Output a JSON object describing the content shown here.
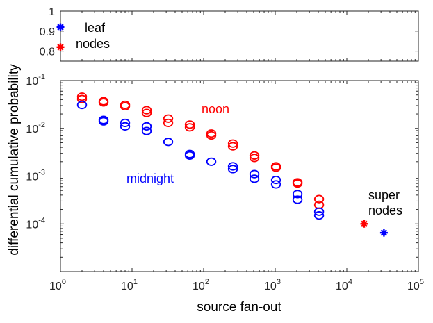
{
  "chart_data": [
    {
      "type": "scatter",
      "panel": "top",
      "xscale": "log",
      "xlim": [
        1,
        100000
      ],
      "ylim": [
        0.75,
        1.0
      ],
      "yticks": [
        0.8,
        0.9,
        1
      ],
      "ytick_labels": [
        "0.8",
        "0.9",
        "1"
      ],
      "grid": false,
      "series": [
        {
          "color": "#0000ff",
          "marker": "star",
          "points": [
            [
              1,
              0.92
            ]
          ]
        },
        {
          "color": "#ff0000",
          "marker": "star",
          "points": [
            [
              1,
              0.82
            ]
          ]
        }
      ],
      "annotations": [
        {
          "text": "leaf",
          "color": "#000000"
        },
        {
          "text": "nodes",
          "color": "#000000"
        }
      ]
    },
    {
      "type": "scatter",
      "panel": "bottom",
      "xscale": "log",
      "yscale": "log",
      "xlim": [
        1,
        100000
      ],
      "ylim": [
        1e-05,
        0.1
      ],
      "xlabel": "source fan-out",
      "ylabel": "differential cumulative probability",
      "xtick_values": [
        1,
        10,
        100,
        1000,
        10000,
        100000
      ],
      "xtick_labels": [
        {
          "base": "10",
          "exp": "0"
        },
        {
          "base": "10",
          "exp": "1"
        },
        {
          "base": "10",
          "exp": "2"
        },
        {
          "base": "10",
          "exp": "3"
        },
        {
          "base": "10",
          "exp": "4"
        },
        {
          "base": "10",
          "exp": "5"
        }
      ],
      "ytick_values": [
        0.0001,
        0.001,
        0.01,
        0.1
      ],
      "ytick_labels": [
        {
          "base": "10",
          "exp": "-4"
        },
        {
          "base": "10",
          "exp": "-3"
        },
        {
          "base": "10",
          "exp": "-2"
        },
        {
          "base": "10",
          "exp": "-1"
        }
      ],
      "grid": false,
      "series": [
        {
          "color": "#ff0000",
          "marker": "circle",
          "points": [
            [
              2,
              0.046
            ],
            [
              2,
              0.041
            ],
            [
              4,
              0.037
            ],
            [
              4,
              0.035
            ],
            [
              8,
              0.031
            ],
            [
              8,
              0.029
            ],
            [
              16,
              0.024
            ],
            [
              16,
              0.021
            ],
            [
              32,
              0.016
            ],
            [
              32,
              0.013
            ],
            [
              64,
              0.012
            ],
            [
              64,
              0.0105
            ],
            [
              128,
              0.0078
            ],
            [
              128,
              0.0071
            ],
            [
              256,
              0.0048
            ],
            [
              256,
              0.0042
            ],
            [
              512,
              0.0027
            ],
            [
              512,
              0.0024
            ],
            [
              1024,
              0.0016
            ],
            [
              1024,
              0.0015
            ],
            [
              2048,
              0.00074
            ],
            [
              2048,
              0.0007
            ],
            [
              4096,
              0.00033
            ],
            [
              4096,
              0.00025
            ]
          ]
        },
        {
          "color": "#0000ff",
          "marker": "circle",
          "points": [
            [
              2,
              0.031
            ],
            [
              4,
              0.015
            ],
            [
              4,
              0.014
            ],
            [
              8,
              0.013
            ],
            [
              8,
              0.011
            ],
            [
              16,
              0.011
            ],
            [
              16,
              0.0088
            ],
            [
              32,
              0.0052
            ],
            [
              64,
              0.0029
            ],
            [
              64,
              0.0027
            ],
            [
              128,
              0.002
            ],
            [
              256,
              0.0016
            ],
            [
              256,
              0.0014
            ],
            [
              512,
              0.0011
            ],
            [
              512,
              0.00088
            ],
            [
              1024,
              0.00083
            ],
            [
              1024,
              0.00067
            ],
            [
              2048,
              0.00042
            ],
            [
              2048,
              0.00032
            ],
            [
              4096,
              0.00018
            ],
            [
              4096,
              0.00015
            ]
          ]
        },
        {
          "color": "#ff0000",
          "marker": "star",
          "points": [
            [
              17500,
              0.0001
            ]
          ]
        },
        {
          "color": "#0000ff",
          "marker": "star",
          "points": [
            [
              33000,
              6.5e-05
            ]
          ]
        }
      ],
      "annotations": [
        {
          "text": "noon",
          "color": "#ff0000"
        },
        {
          "text": "midnight",
          "color": "#0000ff"
        },
        {
          "text": "super",
          "color": "#000000"
        },
        {
          "text": "nodes",
          "color": "#000000"
        }
      ]
    }
  ]
}
